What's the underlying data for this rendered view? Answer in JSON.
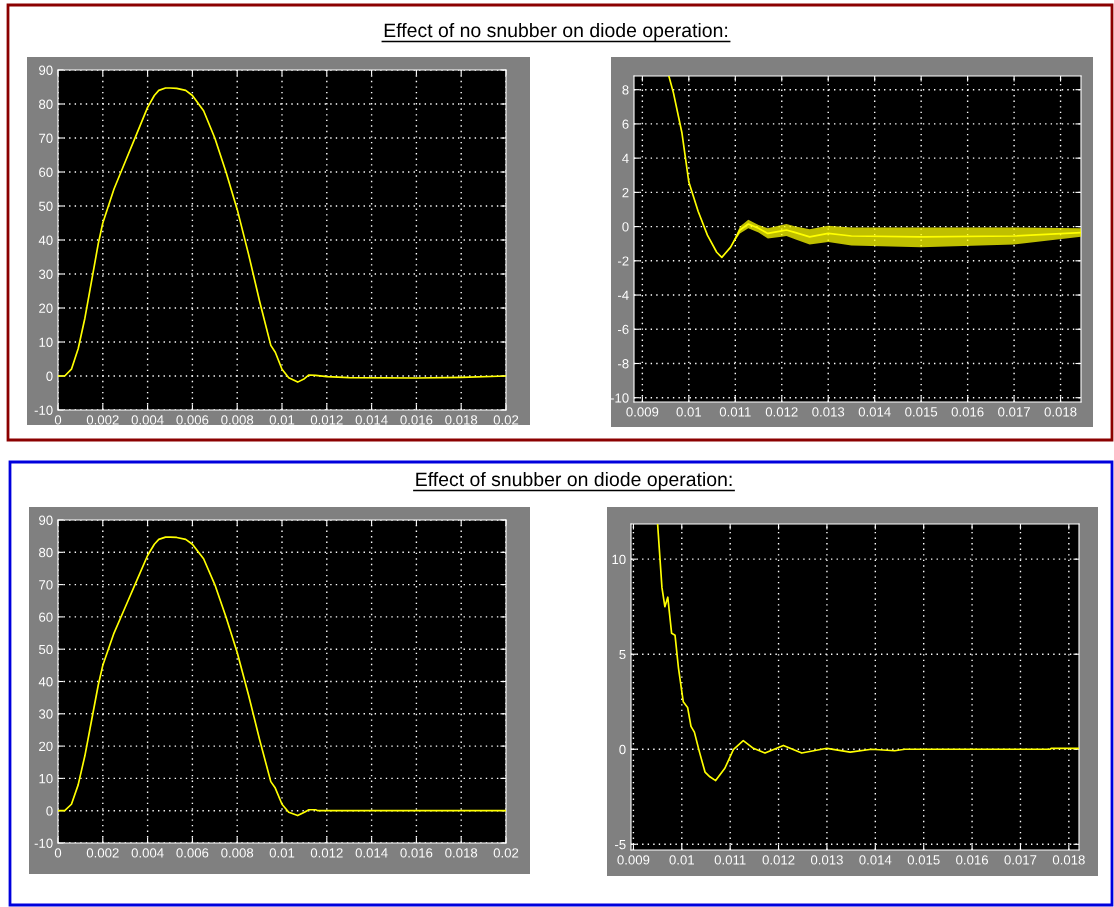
{
  "chart_data": [
    {
      "type": "line",
      "title": "Effect of no snubber on diode operation:",
      "x": [
        0,
        0.0003,
        0.0006,
        0.0009,
        0.0012,
        0.0015,
        0.0018,
        0.002,
        0.0025,
        0.003,
        0.0035,
        0.004,
        0.0043,
        0.0045,
        0.0048,
        0.005,
        0.0053,
        0.0057,
        0.006,
        0.0065,
        0.007,
        0.0075,
        0.008,
        0.0085,
        0.009,
        0.0095,
        0.0097,
        0.01,
        0.0103,
        0.0107,
        0.011,
        0.0112,
        0.0115,
        0.012,
        0.013,
        0.016,
        0.018,
        0.02
      ],
      "series": [
        {
          "color": "#ffff00",
          "values": [
            0,
            0,
            2,
            8,
            17,
            28,
            39,
            45,
            55,
            63,
            71,
            79,
            82.5,
            84,
            84.7,
            84.7,
            84.6,
            84,
            82.5,
            78,
            70,
            60,
            49,
            36,
            22,
            9,
            7,
            2,
            -0.5,
            -1.8,
            -0.8,
            0.3,
            0.2,
            -0.2,
            -0.5,
            -0.6,
            -0.4,
            0
          ]
        }
      ],
      "xlim": [
        0,
        0.02
      ],
      "ylim": [
        -10,
        90
      ],
      "xticks": [
        0,
        0.002,
        0.004,
        0.006,
        0.008,
        0.01,
        0.012,
        0.014,
        0.016,
        0.018,
        0.02
      ],
      "yticks": [
        -10,
        0,
        10,
        20,
        30,
        40,
        50,
        60,
        70,
        80,
        90
      ],
      "grid": true
    },
    {
      "type": "line",
      "x": [
        0.00957,
        0.00967,
        0.00985,
        0.01,
        0.0102,
        0.0104,
        0.0106,
        0.01071,
        0.0109,
        0.0111,
        0.01128,
        0.0115,
        0.0117,
        0.012,
        0.0121,
        0.0123,
        0.0126,
        0.013,
        0.0135,
        0.015,
        0.017,
        0.01844
      ],
      "series": [
        {
          "color": "#ffff00",
          "values": [
            8.8,
            7.8,
            5.5,
            2.6,
            0.9,
            -0.5,
            -1.5,
            -1.8,
            -1.2,
            -0.2,
            0.15,
            -0.1,
            -0.4,
            -0.25,
            -0.2,
            -0.35,
            -0.6,
            -0.4,
            -0.55,
            -0.6,
            -0.55,
            -0.35
          ],
          "lower": [
            8.8,
            7.8,
            5.5,
            2.6,
            0.9,
            -0.5,
            -1.5,
            -1.8,
            -1.2,
            -0.4,
            -0.1,
            -0.35,
            -0.7,
            -0.6,
            -0.55,
            -0.75,
            -1.05,
            -0.9,
            -1.1,
            -1.2,
            -1.05,
            -0.6
          ],
          "upper": [
            8.8,
            7.8,
            5.5,
            2.6,
            0.9,
            -0.5,
            -1.5,
            -1.8,
            -1.2,
            0,
            0.4,
            0.1,
            -0.1,
            0.1,
            0.15,
            0,
            -0.15,
            0.05,
            -0.05,
            -0.05,
            -0.05,
            -0.1
          ]
        }
      ],
      "xlim": [
        0.00882,
        0.01844
      ],
      "ylim": [
        -10.25,
        8.8
      ],
      "xticks": [
        0.009,
        0.01,
        0.011,
        0.012,
        0.013,
        0.014,
        0.015,
        0.016,
        0.017,
        0.018
      ],
      "yticks": [
        -10,
        -8,
        -6,
        -4,
        -2,
        0,
        2,
        4,
        6,
        8
      ],
      "grid": true
    },
    {
      "type": "line",
      "title": "Effect of snubber on diode operation:",
      "x": [
        0,
        0.0003,
        0.0006,
        0.0009,
        0.0012,
        0.0015,
        0.0018,
        0.002,
        0.0025,
        0.003,
        0.0035,
        0.004,
        0.0043,
        0.0045,
        0.0048,
        0.005,
        0.0053,
        0.0057,
        0.006,
        0.0065,
        0.007,
        0.0075,
        0.008,
        0.0085,
        0.009,
        0.0095,
        0.0097,
        0.01,
        0.0103,
        0.0107,
        0.011,
        0.0112,
        0.0115,
        0.0116,
        0.02
      ],
      "series": [
        {
          "color": "#ffff00",
          "values": [
            0,
            0,
            2,
            8,
            17,
            28,
            39,
            45,
            55,
            63,
            71,
            79,
            82.5,
            84,
            84.7,
            84.7,
            84.6,
            84,
            82.5,
            78,
            70,
            60,
            49,
            36,
            22,
            9,
            7,
            2,
            -0.5,
            -1.5,
            -0.5,
            0.3,
            0.3,
            0,
            0
          ]
        }
      ],
      "xlim": [
        0,
        0.02
      ],
      "ylim": [
        -10,
        90
      ],
      "xticks": [
        0,
        0.002,
        0.004,
        0.006,
        0.008,
        0.01,
        0.012,
        0.014,
        0.016,
        0.018,
        0.02
      ],
      "yticks": [
        -10,
        0,
        10,
        20,
        30,
        40,
        50,
        60,
        70,
        80,
        90
      ],
      "grid": true
    },
    {
      "type": "line",
      "x": [
        0.0095,
        0.00959,
        0.00965,
        0.00971,
        0.00979,
        0.00986,
        0.00993,
        0.01003,
        0.01012,
        0.01019,
        0.01026,
        0.01036,
        0.01048,
        0.01058,
        0.0107,
        0.01089,
        0.01107,
        0.01127,
        0.01148,
        0.01172,
        0.0121,
        0.01248,
        0.013,
        0.01348,
        0.01392,
        0.0144,
        0.01461,
        0.01761,
        0.01764,
        0.01821
      ],
      "series": [
        {
          "color": "#ffff00",
          "values": [
            11.85,
            8.5,
            7.5,
            8.0,
            6.1,
            6.0,
            4.3,
            2.5,
            2.2,
            1.2,
            0.9,
            -0.1,
            -1.2,
            -1.45,
            -1.65,
            -1.0,
            0,
            0.45,
            0.05,
            -0.2,
            0.2,
            -0.2,
            0.05,
            -0.15,
            0,
            -0.08,
            0,
            0,
            0.05,
            0.05
          ]
        }
      ],
      "xlim": [
        0.00895,
        0.01821
      ],
      "ylim": [
        -5.3,
        11.85
      ],
      "xticks": [
        0.009,
        0.01,
        0.011,
        0.012,
        0.013,
        0.014,
        0.015,
        0.016,
        0.017,
        0.018
      ],
      "yticks": [
        -5,
        0,
        5,
        10
      ],
      "grid": true
    }
  ]
}
